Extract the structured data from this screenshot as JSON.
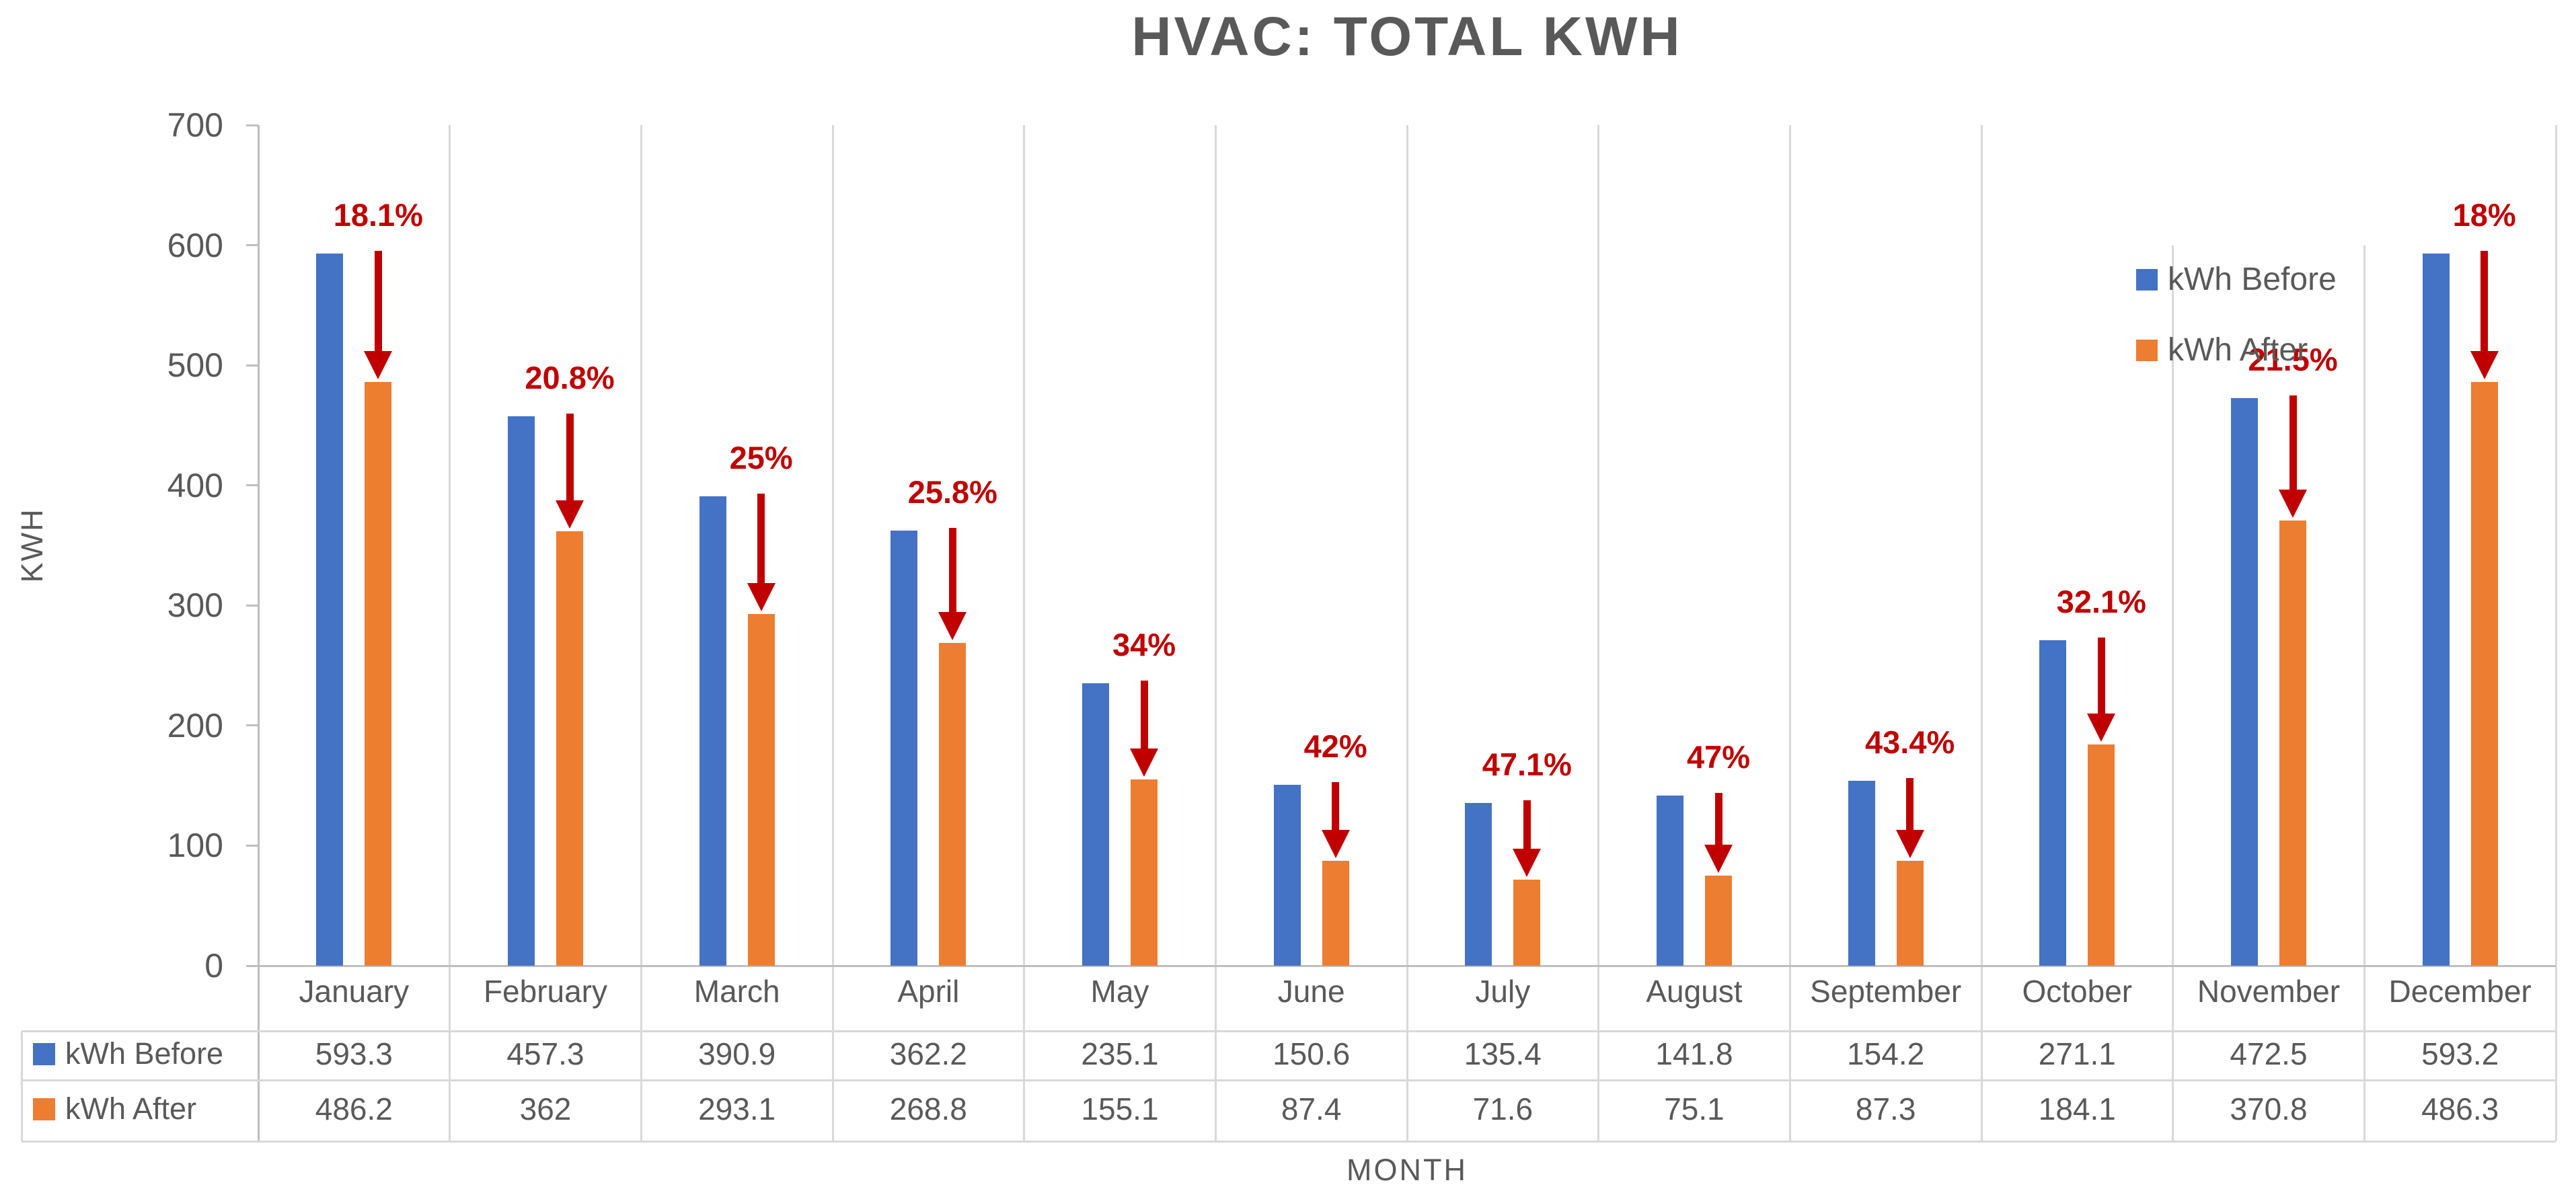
{
  "colors": {
    "before": "#4472C4",
    "after": "#ED7D31",
    "annotation": "#C00000",
    "text": "#595959",
    "grid": "#D9D9D9",
    "axis": "#BFBFBF",
    "background": "#FFFFFF"
  },
  "chart_data": {
    "type": "bar",
    "title": "HVAC: TOTAL KWH",
    "xlabel": "MONTH",
    "ylabel": "KWH",
    "categories": [
      "January",
      "February",
      "March",
      "April",
      "May",
      "June",
      "July",
      "August",
      "September",
      "October",
      "November",
      "December"
    ],
    "series": [
      {
        "name": "kWh Before",
        "color": "#4472C4",
        "values": [
          593.3,
          457.3,
          390.9,
          362.2,
          235.1,
          150.6,
          135.4,
          141.8,
          154.2,
          271.1,
          472.5,
          593.2
        ],
        "display": [
          "593.3",
          "457.3",
          "390.9",
          "362.2",
          "235.1",
          "150.6",
          "135.4",
          "141.8",
          "154.2",
          "271.1",
          "472.5",
          "593.2"
        ]
      },
      {
        "name": "kWh After",
        "color": "#ED7D31",
        "values": [
          486.2,
          362,
          293.1,
          268.8,
          155.1,
          87.4,
          71.6,
          75.1,
          87.3,
          184.1,
          370.8,
          486.3
        ],
        "display": [
          "486.2",
          "362",
          "293.1",
          "268.8",
          "155.1",
          "87.4",
          "71.6",
          "75.1",
          "87.3",
          "184.1",
          "370.8",
          "486.3"
        ]
      }
    ],
    "annotations": {
      "style": "red-down-arrow-over-after-bar",
      "color": "#C00000",
      "pct_reduction": [
        "18.1%",
        "20.8%",
        "25%",
        "25.8%",
        "34%",
        "42%",
        "47.1%",
        "47%",
        "43.4%",
        "32.1%",
        "21.5%",
        "18%"
      ]
    },
    "yticks": [
      "0",
      "100",
      "200",
      "300",
      "400",
      "500",
      "600",
      "700"
    ],
    "ylim": [
      0,
      700
    ],
    "legend_position": "top-right",
    "grid": "vertical-category-lines-only",
    "data_table": true
  }
}
